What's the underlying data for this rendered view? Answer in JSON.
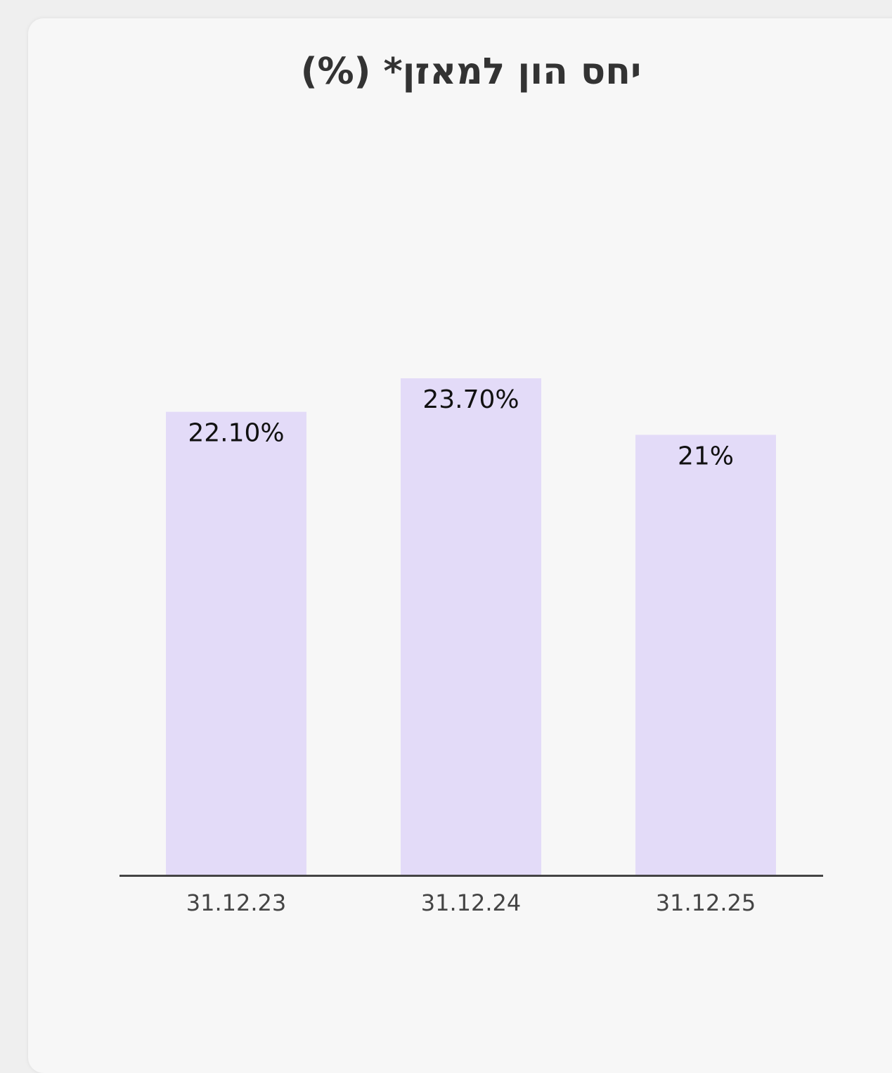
{
  "chart_data": {
    "type": "bar",
    "title": "יחס הון למאזן* (%)",
    "categories": [
      "31.12.23",
      "31.12.24",
      "31.12.25"
    ],
    "values": [
      22.1,
      23.7,
      21
    ],
    "value_labels": [
      "22.10%",
      "23.70%",
      "21%"
    ],
    "color": "#e3dbf8"
  }
}
